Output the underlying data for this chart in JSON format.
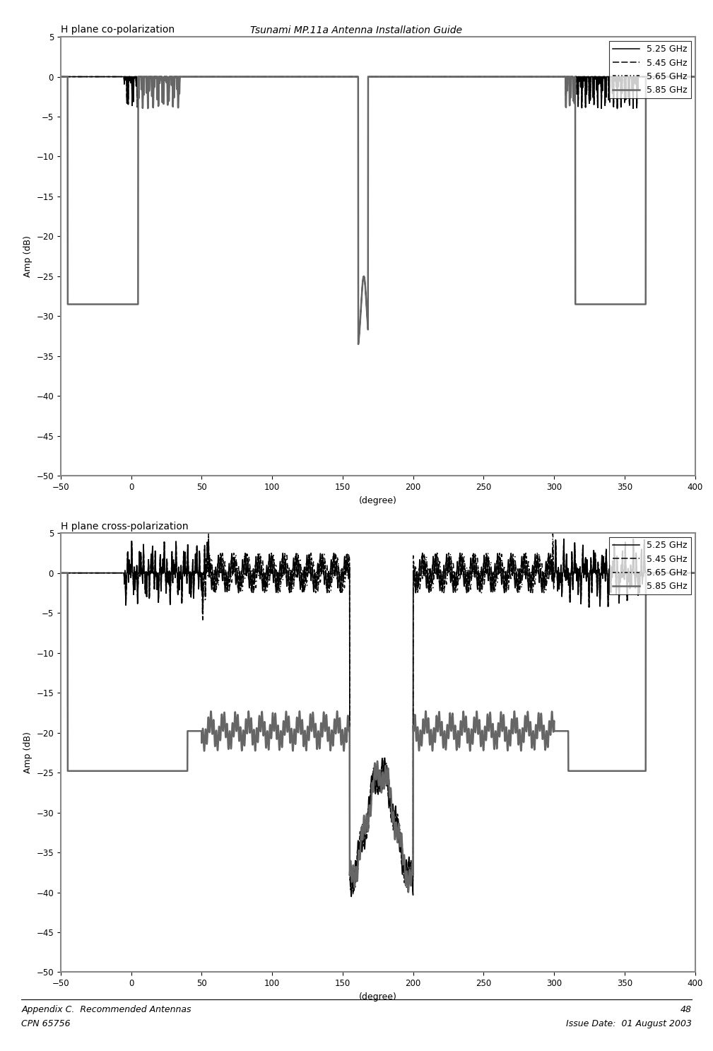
{
  "title": "Tsunami MP.11a Antenna Installation Guide",
  "title_fontsize": 10,
  "title_style": "italic",
  "footer_left_line1": "Appendix C.  Recommended Antennas",
  "footer_left_line2": "CPN 65756",
  "footer_right_line1": "48",
  "footer_right_line2": "Issue Date:  01 August 2003",
  "footer_fontsize": 9,
  "plot1_title": "H plane co-polarization",
  "plot2_title": "H plane cross-polarization",
  "xlabel": "(degree)",
  "ylabel": "Amp (dB)",
  "xlim": [
    -50,
    400
  ],
  "ylim": [
    -50,
    5
  ],
  "xticks": [
    -50,
    0,
    50,
    100,
    150,
    200,
    250,
    300,
    350,
    400
  ],
  "yticks": [
    5,
    0,
    -5,
    -10,
    -15,
    -20,
    -25,
    -30,
    -35,
    -40,
    -45,
    -50
  ],
  "legend_labels": [
    "5.25 GHz",
    "5.45 GHz",
    "5.65 GHz",
    "5.85 GHz"
  ],
  "bg_color": "#ffffff",
  "plot_bg_color": "#ffffff"
}
